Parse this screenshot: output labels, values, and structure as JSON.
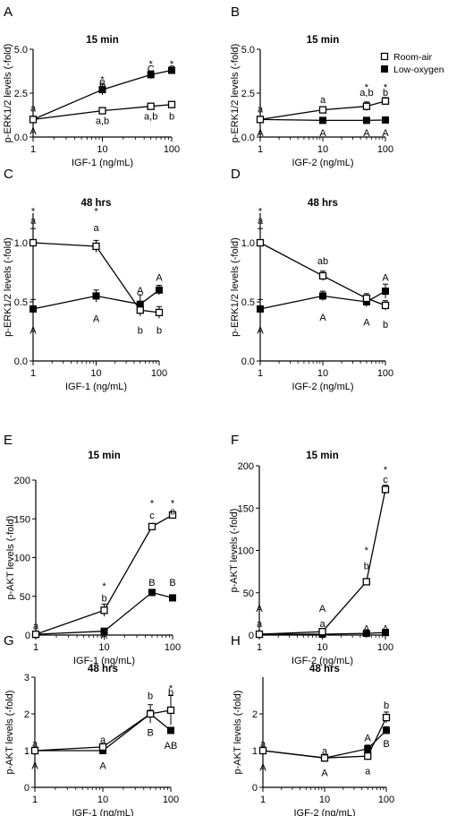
{
  "legend": {
    "items": [
      "Room-air",
      "Low-oxygen"
    ]
  },
  "chart_data": [
    {
      "letter": "A",
      "type": "line",
      "title": "15 min",
      "xlabel": "IGF-1 (ng/mL)",
      "ylabel": "p-ERK1/2 levels (-fold)",
      "xscale": "log",
      "xlim": [
        1,
        100
      ],
      "xticks": [
        "1",
        "10",
        "100"
      ],
      "ylim": [
        0,
        5
      ],
      "yticks": [
        "0.0",
        "2.5",
        "5.0"
      ],
      "x": [
        1,
        10,
        50,
        100
      ],
      "series": [
        {
          "name": "Room-air",
          "marker": "open-square",
          "values": [
            1.0,
            1.5,
            1.75,
            1.85
          ],
          "errors": [
            0.05,
            0.08,
            0.1,
            0.08
          ]
        },
        {
          "name": "Low-oxygen",
          "marker": "filled-square",
          "values": [
            1.0,
            2.7,
            3.55,
            3.8
          ],
          "errors": [
            0.05,
            0.3,
            0.22,
            0.12
          ]
        }
      ],
      "annotations": [
        {
          "text": "a",
          "x": 1,
          "y": 1.65
        },
        {
          "text": "A",
          "x": 1,
          "y": 0.35
        },
        {
          "text": "*",
          "x": 10,
          "y": 3.5
        },
        {
          "text": "B",
          "x": 10,
          "y": 3.05
        },
        {
          "text": "a,b",
          "x": 10,
          "y": 0.95
        },
        {
          "text": "*",
          "x": 50,
          "y": 4.4
        },
        {
          "text": "C",
          "x": 50,
          "y": 3.9
        },
        {
          "text": "a,b",
          "x": 50,
          "y": 1.2
        },
        {
          "text": "*",
          "x": 100,
          "y": 4.4
        },
        {
          "text": "C",
          "x": 100,
          "y": 3.9
        },
        {
          "text": "b",
          "x": 100,
          "y": 1.2
        }
      ]
    },
    {
      "letter": "B",
      "type": "line",
      "title": "15 min",
      "xlabel": "IGF-2 (ng/mL)",
      "ylabel": "p-ERK1/2 levels (-fold)",
      "xscale": "log",
      "xlim": [
        1,
        100
      ],
      "xticks": [
        "1",
        "10",
        "100"
      ],
      "ylim": [
        0,
        5
      ],
      "yticks": [
        "0.0",
        "2.5",
        "5.0"
      ],
      "x": [
        1,
        10,
        50,
        100
      ],
      "series": [
        {
          "name": "Room-air",
          "marker": "open-square",
          "values": [
            1.0,
            1.55,
            1.75,
            2.05
          ],
          "errors": [
            0.05,
            0.1,
            0.25,
            0.2
          ]
        },
        {
          "name": "Low-oxygen",
          "marker": "filled-square",
          "values": [
            1.0,
            0.95,
            0.95,
            0.97
          ],
          "errors": [
            0.05,
            0.05,
            0.05,
            0.05
          ]
        }
      ],
      "annotations": [
        {
          "text": "a",
          "x": 1,
          "y": 1.6
        },
        {
          "text": "A",
          "x": 1,
          "y": 0.25
        },
        {
          "text": "a",
          "x": 10,
          "y": 2.15
        },
        {
          "text": "A",
          "x": 10,
          "y": 0.25
        },
        {
          "text": "*",
          "x": 50,
          "y": 3.05
        },
        {
          "text": "a,b",
          "x": 50,
          "y": 2.55
        },
        {
          "text": "A",
          "x": 50,
          "y": 0.25
        },
        {
          "text": "*",
          "x": 100,
          "y": 3.05
        },
        {
          "text": "b",
          "x": 100,
          "y": 2.55
        },
        {
          "text": "A",
          "x": 100,
          "y": 0.25
        }
      ]
    },
    {
      "letter": "C",
      "type": "line",
      "title": "48 hrs",
      "xlabel": "IGF-1 (ng/mL)",
      "ylabel": "p-ERK1/2 levels (-fold)",
      "xscale": "log",
      "xlim": [
        1,
        100
      ],
      "xticks": [
        "1",
        "10",
        "100"
      ],
      "ylim": [
        0,
        1.25
      ],
      "yticks": [
        "0.0",
        "0.5",
        "1.0"
      ],
      "x": [
        1,
        10,
        50,
        100
      ],
      "series": [
        {
          "name": "Room-air",
          "marker": "open-square",
          "values": [
            1.0,
            0.97,
            0.43,
            0.41
          ],
          "errors": [
            0.12,
            0.05,
            0.05,
            0.05
          ]
        },
        {
          "name": "Low-oxygen",
          "marker": "filled-square",
          "values": [
            0.44,
            0.55,
            0.48,
            0.6
          ],
          "errors": [
            0.08,
            0.05,
            0.08,
            0.04
          ]
        }
      ],
      "annotations": [
        {
          "text": "*",
          "x": 1,
          "y": 1.3
        },
        {
          "text": "a",
          "x": 1,
          "y": 1.19
        },
        {
          "text": "A",
          "x": 1,
          "y": 0.26
        },
        {
          "text": "*",
          "x": 10,
          "y": 1.3
        },
        {
          "text": "a",
          "x": 10,
          "y": 1.13
        },
        {
          "text": "A",
          "x": 10,
          "y": 0.36
        },
        {
          "text": "A",
          "x": 50,
          "y": 0.6
        },
        {
          "text": "b",
          "x": 50,
          "y": 0.26
        },
        {
          "text": "A",
          "x": 100,
          "y": 0.71
        },
        {
          "text": "b",
          "x": 100,
          "y": 0.26
        }
      ]
    },
    {
      "letter": "D",
      "type": "line",
      "title": "48 hrs",
      "xlabel": "IGF-2 (ng/mL)",
      "ylabel": "p-ERK1/2 levels (-fold)",
      "xscale": "log",
      "xlim": [
        1,
        100
      ],
      "xticks": [
        "1",
        "10",
        "100"
      ],
      "ylim": [
        0,
        1.25
      ],
      "yticks": [
        "0.0",
        "0.5",
        "1.0"
      ],
      "x": [
        1,
        10,
        50,
        100
      ],
      "series": [
        {
          "name": "Room-air",
          "marker": "open-square",
          "values": [
            1.0,
            0.72,
            0.53,
            0.47
          ],
          "errors": [
            0.12,
            0.04,
            0.04,
            0.04
          ]
        },
        {
          "name": "Low-oxygen",
          "marker": "filled-square",
          "values": [
            0.44,
            0.55,
            0.5,
            0.59
          ],
          "errors": [
            0.08,
            0.04,
            0.04,
            0.06
          ]
        }
      ],
      "annotations": [
        {
          "text": "*",
          "x": 1,
          "y": 1.3
        },
        {
          "text": "a",
          "x": 1,
          "y": 1.19
        },
        {
          "text": "A",
          "x": 1,
          "y": 0.26
        },
        {
          "text": "ab",
          "x": 10,
          "y": 0.85
        },
        {
          "text": "A",
          "x": 10,
          "y": 0.37
        },
        {
          "text": "A",
          "x": 50,
          "y": 0.33
        },
        {
          "text": "A",
          "x": 100,
          "y": 0.71
        },
        {
          "text": "b",
          "x": 100,
          "y": 0.31
        }
      ]
    },
    {
      "letter": "E",
      "type": "line",
      "title": "15 min",
      "xlabel": "IGF-1 (ng/mL)",
      "ylabel": "p-AKT levels (-fold)",
      "xscale": "log",
      "xlim": [
        1,
        100
      ],
      "xticks": [
        "1",
        "10",
        "100"
      ],
      "ylim": [
        0,
        200
      ],
      "yticks": [
        "0",
        "50",
        "100",
        "150",
        "200"
      ],
      "x": [
        1,
        10,
        50,
        100
      ],
      "series": [
        {
          "name": "Room-air",
          "marker": "open-square",
          "values": [
            1,
            32,
            140,
            155
          ],
          "errors": [
            0.5,
            8,
            3,
            4
          ]
        },
        {
          "name": "Low-oxygen",
          "marker": "filled-square",
          "values": [
            1,
            5,
            55,
            48
          ],
          "errors": [
            0.5,
            2,
            2,
            3
          ]
        }
      ],
      "annotations": [
        {
          "text": "a",
          "x": 1,
          "y": 12
        },
        {
          "text": "*",
          "x": 10,
          "y": 68
        },
        {
          "text": "b",
          "x": 10,
          "y": 48
        },
        {
          "text": "A",
          "x": 10,
          "y": 0
        },
        {
          "text": "*",
          "x": 50,
          "y": 175
        },
        {
          "text": "c",
          "x": 50,
          "y": 155
        },
        {
          "text": "B",
          "x": 50,
          "y": 68
        },
        {
          "text": "*",
          "x": 100,
          "y": 175
        },
        {
          "text": "c",
          "x": 100,
          "y": 160
        },
        {
          "text": "B",
          "x": 100,
          "y": 68
        }
      ]
    },
    {
      "letter": "F",
      "type": "line",
      "title": "15 min",
      "xlabel": "IGF-2 (ng/mL)",
      "ylabel": "p-AKT levels (-fold)",
      "xscale": "log",
      "xlim": [
        1,
        100
      ],
      "xticks": [
        "1",
        "10",
        "100"
      ],
      "ylim": [
        0,
        200
      ],
      "yticks": [
        "0",
        "50",
        "100",
        "150",
        "200"
      ],
      "x": [
        1,
        10,
        50,
        100
      ],
      "series": [
        {
          "name": "Room-air",
          "marker": "open-square",
          "values": [
            1,
            4,
            63,
            172
          ],
          "errors": [
            0.5,
            2,
            3,
            5
          ]
        },
        {
          "name": "Low-oxygen",
          "marker": "filled-square",
          "values": [
            1,
            1,
            2,
            3
          ],
          "errors": [
            0.5,
            0.5,
            0.5,
            0.5
          ]
        }
      ],
      "annotations": [
        {
          "text": "A",
          "x": 1,
          "y": 32
        },
        {
          "text": "a",
          "x": 1,
          "y": 14
        },
        {
          "text": "A",
          "x": 10,
          "y": 32
        },
        {
          "text": "a",
          "x": 10,
          "y": 14
        },
        {
          "text": "*",
          "x": 50,
          "y": 105
        },
        {
          "text": "b",
          "x": 50,
          "y": 82
        },
        {
          "text": "A",
          "x": 50,
          "y": 8
        },
        {
          "text": "*",
          "x": 100,
          "y": 200
        },
        {
          "text": "c",
          "x": 100,
          "y": 184
        },
        {
          "text": "A",
          "x": 100,
          "y": 8
        }
      ]
    },
    {
      "letter": "G",
      "type": "line",
      "title": "48 hrs",
      "xlabel": "IGF-1 (ng/mL)",
      "ylabel": "p-AKT levels (-fold)",
      "xscale": "log",
      "xlim": [
        1,
        100
      ],
      "xticks": [
        "1",
        "10",
        "100"
      ],
      "ylim": [
        0,
        3
      ],
      "yticks": [
        "0",
        "1",
        "2",
        "3"
      ],
      "x": [
        1,
        10,
        50,
        100
      ],
      "series": [
        {
          "name": "Room-air",
          "marker": "open-square",
          "values": [
            1.0,
            1.1,
            2.0,
            2.1
          ],
          "errors": [
            0.05,
            0.05,
            0.25,
            0.4
          ]
        },
        {
          "name": "Low-oxygen",
          "marker": "filled-square",
          "values": [
            1.0,
            1.0,
            2.0,
            1.55
          ],
          "errors": [
            0.05,
            0.05,
            0.1,
            0.08
          ]
        }
      ],
      "annotations": [
        {
          "text": "a",
          "x": 1,
          "y": 1.2
        },
        {
          "text": "A",
          "x": 1,
          "y": 0.6
        },
        {
          "text": "a",
          "x": 10,
          "y": 1.3
        },
        {
          "text": "A",
          "x": 10,
          "y": 0.6
        },
        {
          "text": "b",
          "x": 50,
          "y": 2.5
        },
        {
          "text": "B",
          "x": 50,
          "y": 1.5
        },
        {
          "text": "*",
          "x": 100,
          "y": 2.8
        },
        {
          "text": "b",
          "x": 100,
          "y": 2.6
        },
        {
          "text": "AB",
          "x": 100,
          "y": 1.15
        }
      ]
    },
    {
      "letter": "H",
      "type": "line",
      "title": "48 hrs",
      "xlabel": "IGF-2 (ng/mL)",
      "ylabel": "p-AKT levels (-fold)",
      "xscale": "log",
      "xlim": [
        1,
        100
      ],
      "xticks": [
        "1",
        "10",
        "100"
      ],
      "ylim": [
        0,
        3
      ],
      "yticks": [
        "0",
        "1",
        "2"
      ],
      "x": [
        1,
        10,
        50,
        100
      ],
      "series": [
        {
          "name": "Room-air",
          "marker": "open-square",
          "values": [
            1.0,
            0.8,
            0.85,
            1.9
          ],
          "errors": [
            0.05,
            0.05,
            0.1,
            0.15
          ]
        },
        {
          "name": "Low-oxygen",
          "marker": "filled-square",
          "values": [
            1.0,
            0.8,
            1.05,
            1.55
          ],
          "errors": [
            0.05,
            0.05,
            0.1,
            0.1
          ]
        }
      ],
      "annotations": [
        {
          "text": "a",
          "x": 1,
          "y": 1.2
        },
        {
          "text": "A",
          "x": 1,
          "y": 0.55
        },
        {
          "text": "a",
          "x": 10,
          "y": 1.0
        },
        {
          "text": "A",
          "x": 10,
          "y": 0.4
        },
        {
          "text": "A",
          "x": 50,
          "y": 1.35
        },
        {
          "text": "a",
          "x": 50,
          "y": 0.45
        },
        {
          "text": "b",
          "x": 100,
          "y": 2.25
        },
        {
          "text": "B",
          "x": 100,
          "y": 1.2
        }
      ]
    }
  ]
}
